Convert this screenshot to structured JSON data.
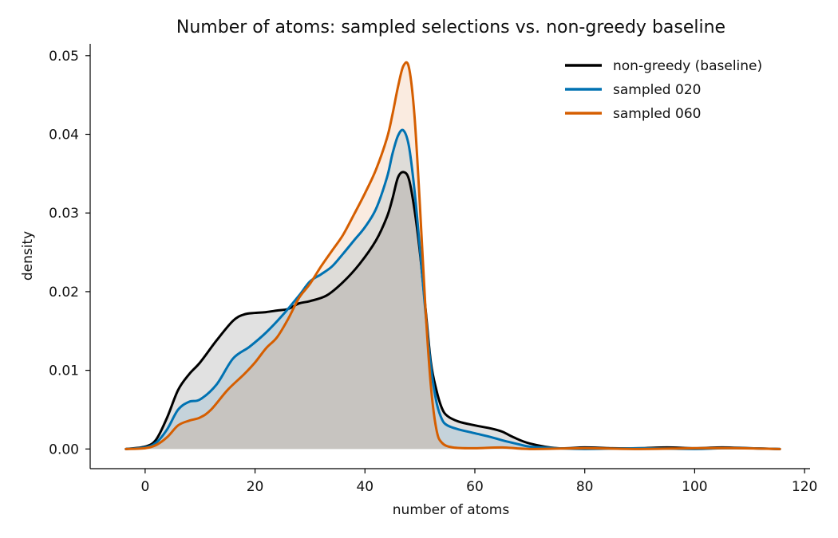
{
  "chart_data": {
    "type": "area",
    "title": "Number of atoms: sampled selections vs. non-greedy baseline",
    "xlabel": "number of atoms",
    "ylabel": "density",
    "xlim": [
      -10,
      121
    ],
    "ylim": [
      -0.0025,
      0.0515
    ],
    "xticks": [
      0,
      20,
      40,
      60,
      80,
      100,
      120
    ],
    "yticks": [
      0.0,
      0.01,
      0.02,
      0.03,
      0.04,
      0.05
    ],
    "ytick_labels": [
      "0.00",
      "0.01",
      "0.02",
      "0.03",
      "0.04",
      "0.05"
    ],
    "grid": false,
    "legend_position": "top-right",
    "series": [
      {
        "name": "non-greedy (baseline)",
        "color": "#000000",
        "fill_color": "#bdbdbd",
        "fill_opacity": 0.45,
        "points": [
          [
            -3.5,
            0
          ],
          [
            0,
            0.0003
          ],
          [
            2,
            0.0012
          ],
          [
            4,
            0.004
          ],
          [
            6,
            0.0075
          ],
          [
            8,
            0.0095
          ],
          [
            10,
            0.011
          ],
          [
            13,
            0.0138
          ],
          [
            16,
            0.0163
          ],
          [
            18,
            0.0171
          ],
          [
            20,
            0.0173
          ],
          [
            22,
            0.0174
          ],
          [
            24,
            0.0176
          ],
          [
            26,
            0.0178
          ],
          [
            28,
            0.0185
          ],
          [
            30,
            0.0188
          ],
          [
            33,
            0.0195
          ],
          [
            36,
            0.0212
          ],
          [
            39,
            0.0235
          ],
          [
            42,
            0.0265
          ],
          [
            44,
            0.0295
          ],
          [
            45,
            0.0318
          ],
          [
            46,
            0.0345
          ],
          [
            47,
            0.0352
          ],
          [
            48,
            0.0343
          ],
          [
            49,
            0.0305
          ],
          [
            50,
            0.025
          ],
          [
            51,
            0.018
          ],
          [
            52,
            0.011
          ],
          [
            53,
            0.0075
          ],
          [
            54,
            0.0052
          ],
          [
            55,
            0.0042
          ],
          [
            57,
            0.0035
          ],
          [
            60,
            0.003
          ],
          [
            63,
            0.0026
          ],
          [
            65,
            0.0022
          ],
          [
            67,
            0.0015
          ],
          [
            70,
            0.0007
          ],
          [
            75,
            0.0001
          ],
          [
            80,
            0.0002
          ],
          [
            85,
            0.0001
          ],
          [
            90,
            0.0001
          ],
          [
            95,
            0.0002
          ],
          [
            100,
            0.0001
          ],
          [
            105,
            0.0002
          ],
          [
            110,
            0.0001
          ],
          [
            115.5,
            0
          ]
        ]
      },
      {
        "name": "sampled 020",
        "color": "#0072b2",
        "fill_color": "#0072b2",
        "fill_opacity": 0.12,
        "points": [
          [
            -3.5,
            0
          ],
          [
            0,
            0.0002
          ],
          [
            2,
            0.0008
          ],
          [
            4,
            0.0025
          ],
          [
            6,
            0.005
          ],
          [
            8,
            0.006
          ],
          [
            10,
            0.0063
          ],
          [
            13,
            0.0082
          ],
          [
            16,
            0.0115
          ],
          [
            19,
            0.013
          ],
          [
            22,
            0.0148
          ],
          [
            25,
            0.017
          ],
          [
            28,
            0.0195
          ],
          [
            30,
            0.0213
          ],
          [
            32,
            0.0222
          ],
          [
            34,
            0.0232
          ],
          [
            36,
            0.0248
          ],
          [
            38,
            0.0265
          ],
          [
            40,
            0.0282
          ],
          [
            42,
            0.0305
          ],
          [
            44,
            0.0345
          ],
          [
            45,
            0.0375
          ],
          [
            46,
            0.0398
          ],
          [
            47,
            0.0405
          ],
          [
            48,
            0.0385
          ],
          [
            49,
            0.033
          ],
          [
            50,
            0.0255
          ],
          [
            51,
            0.0175
          ],
          [
            52,
            0.0105
          ],
          [
            53,
            0.006
          ],
          [
            54,
            0.0038
          ],
          [
            55,
            0.003
          ],
          [
            57,
            0.0025
          ],
          [
            60,
            0.002
          ],
          [
            63,
            0.0015
          ],
          [
            65,
            0.0011
          ],
          [
            68,
            0.0006
          ],
          [
            70,
            0.0003
          ],
          [
            75,
            0.0001
          ],
          [
            80,
            0
          ],
          [
            90,
            0.0001
          ],
          [
            100,
            0
          ],
          [
            105,
            0.0001
          ],
          [
            110,
            0.0001
          ],
          [
            115.5,
            0
          ]
        ]
      },
      {
        "name": "sampled 060",
        "color": "#d55e00",
        "fill_color": "#d55e00",
        "fill_opacity": 0.12,
        "points": [
          [
            -3.5,
            0
          ],
          [
            0,
            0.0001
          ],
          [
            2,
            0.0005
          ],
          [
            4,
            0.0015
          ],
          [
            6,
            0.003
          ],
          [
            8,
            0.0036
          ],
          [
            10,
            0.004
          ],
          [
            12,
            0.005
          ],
          [
            15,
            0.0075
          ],
          [
            18,
            0.0095
          ],
          [
            20,
            0.011
          ],
          [
            22,
            0.0128
          ],
          [
            24,
            0.0142
          ],
          [
            26,
            0.0165
          ],
          [
            28,
            0.0192
          ],
          [
            30,
            0.021
          ],
          [
            32,
            0.0232
          ],
          [
            34,
            0.0252
          ],
          [
            36,
            0.0272
          ],
          [
            38,
            0.0298
          ],
          [
            40,
            0.0325
          ],
          [
            42,
            0.0355
          ],
          [
            44,
            0.0395
          ],
          [
            45,
            0.0425
          ],
          [
            46,
            0.046
          ],
          [
            47,
            0.0487
          ],
          [
            48,
            0.0485
          ],
          [
            49,
            0.0425
          ],
          [
            50,
            0.031
          ],
          [
            51,
            0.018
          ],
          [
            52,
            0.008
          ],
          [
            53,
            0.0025
          ],
          [
            54,
            0.0008
          ],
          [
            56,
            0.0002
          ],
          [
            60,
            0.0001
          ],
          [
            65,
            0.0002
          ],
          [
            70,
            0
          ],
          [
            80,
            0.0001
          ],
          [
            90,
            0
          ],
          [
            100,
            0.0001
          ],
          [
            108,
            0.0001
          ],
          [
            115.5,
            0
          ]
        ]
      }
    ]
  }
}
